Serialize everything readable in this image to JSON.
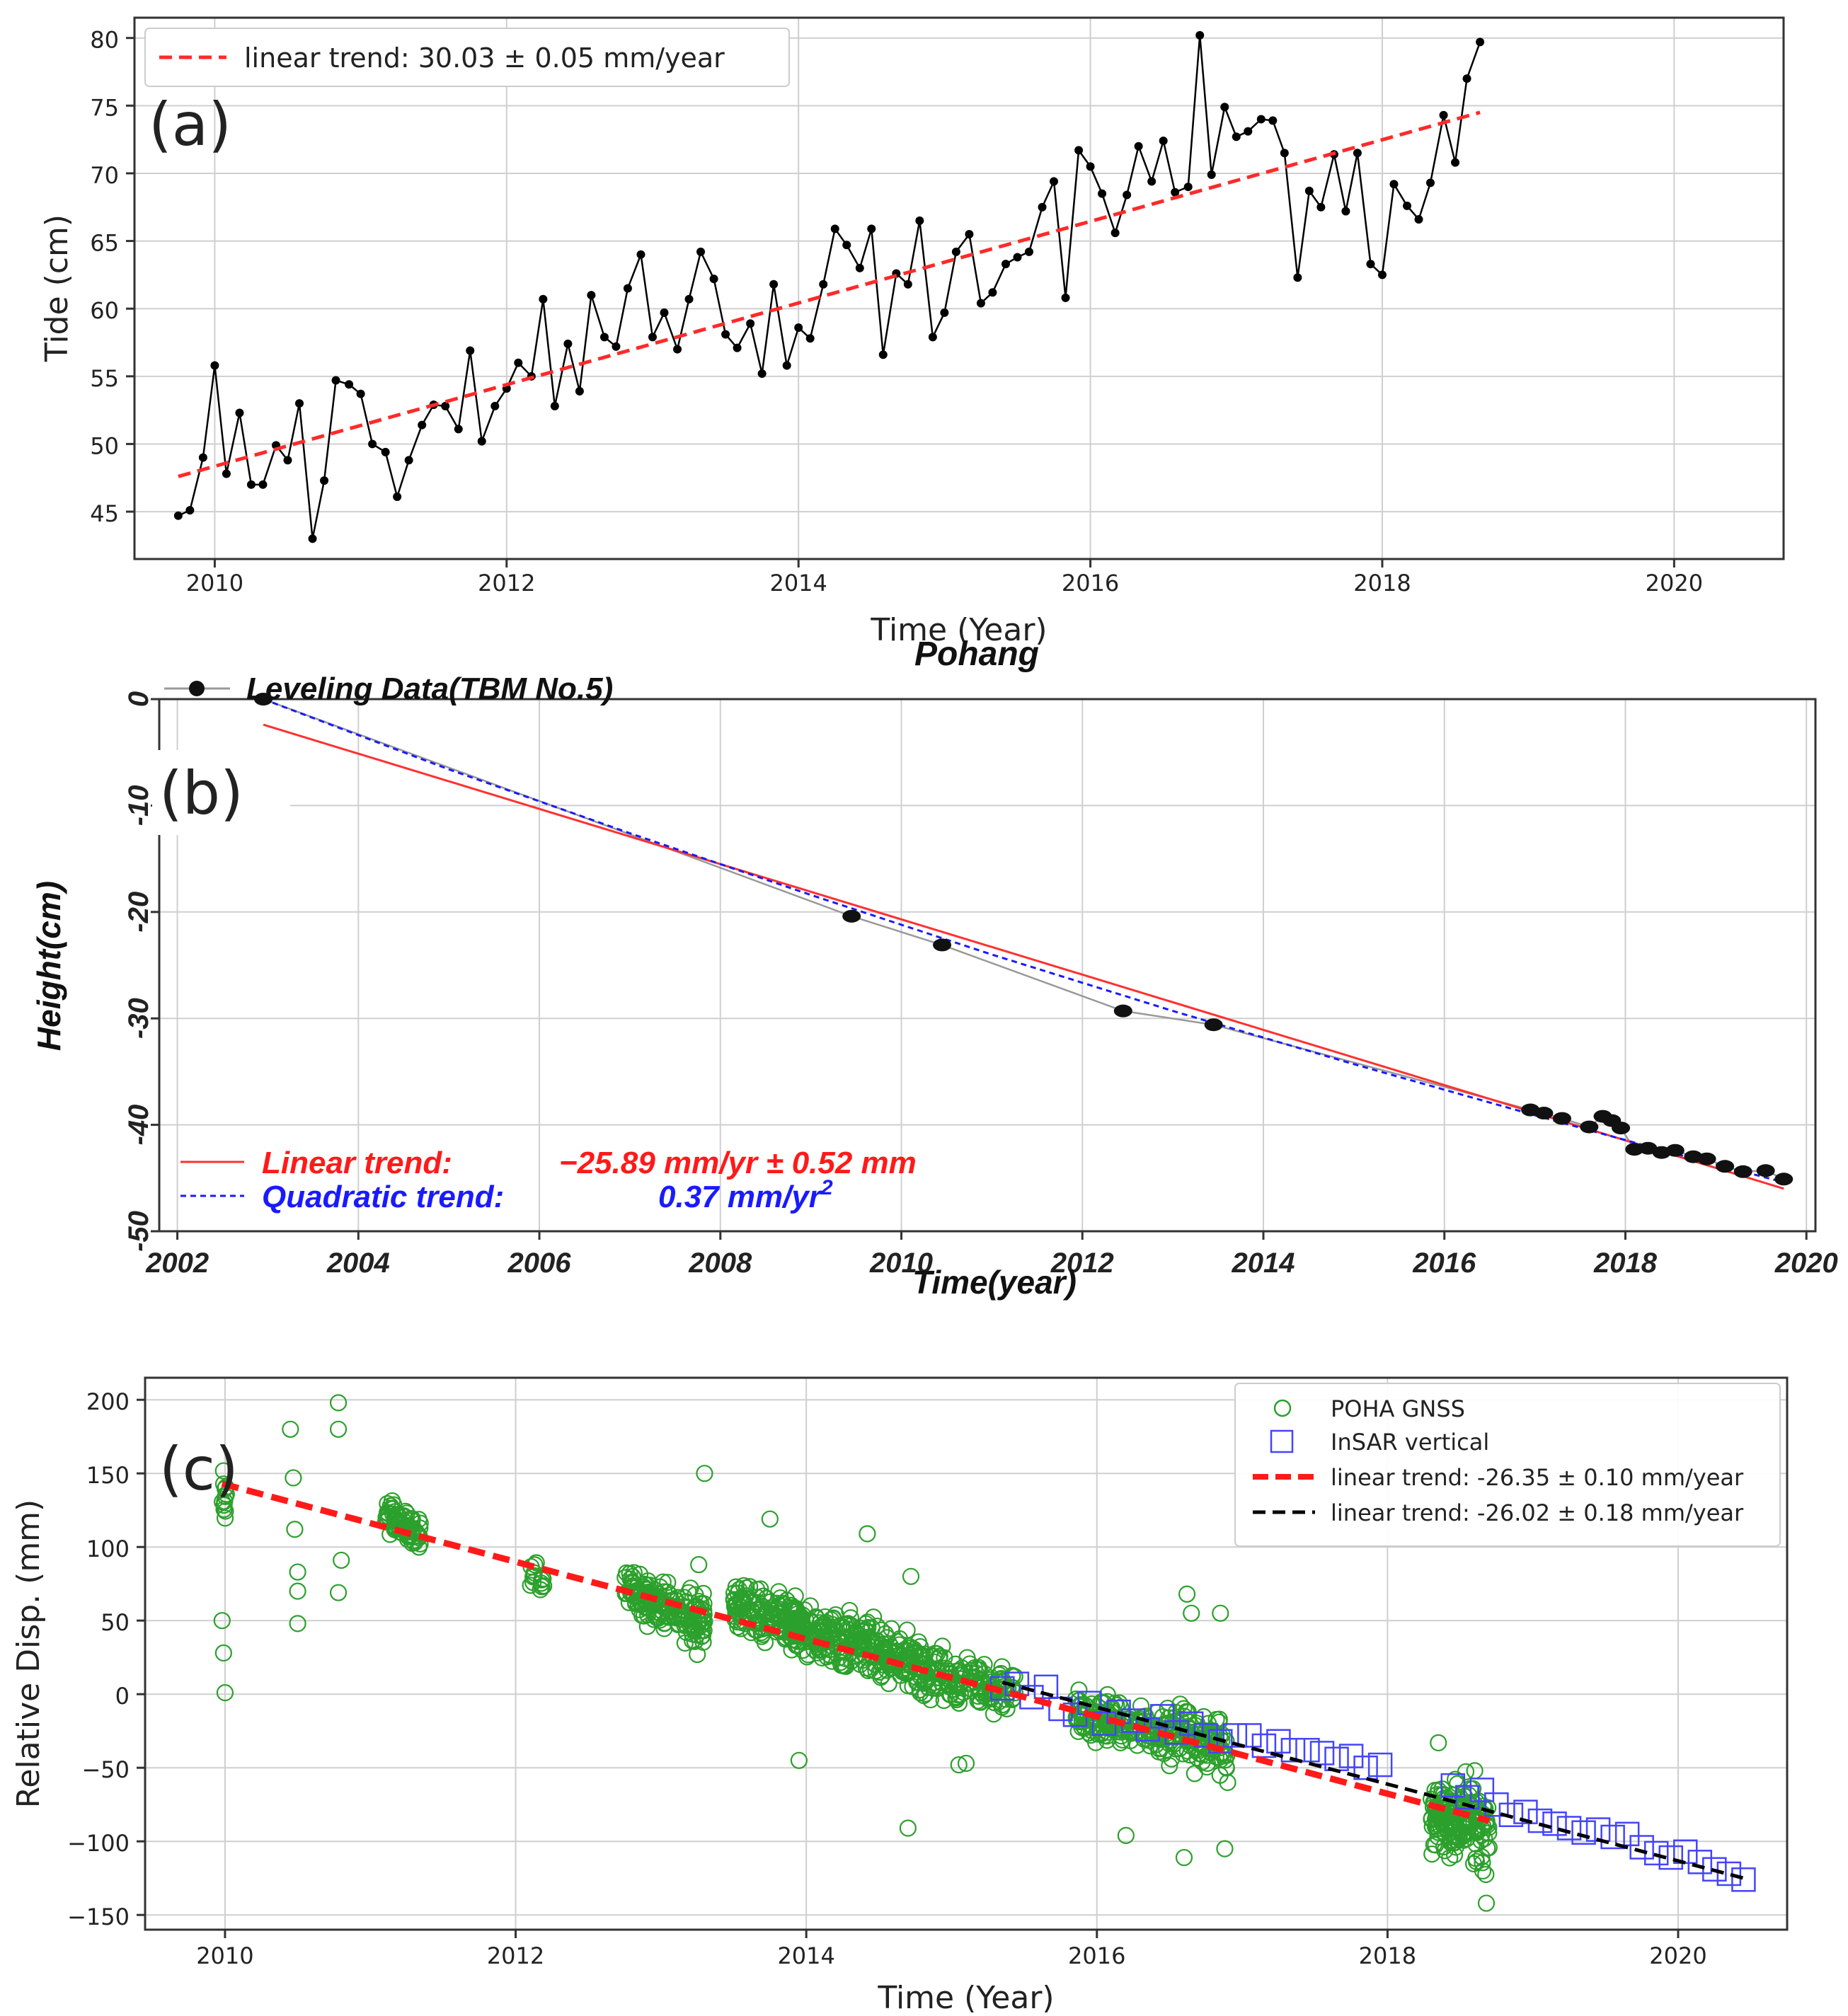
{
  "chart_data": [
    {
      "id": "a",
      "type": "line",
      "panel_label": "(a)",
      "title": "",
      "xlabel": "Time (Year)",
      "ylabel": "Tide (cm)",
      "xlim": [
        2009.45,
        2020.75
      ],
      "ylim": [
        41.5,
        81.5
      ],
      "xticks": [
        "2010",
        "2012",
        "2014",
        "2016",
        "2018",
        "2020"
      ],
      "yticks": [
        "45",
        "50",
        "55",
        "60",
        "65",
        "70",
        "75",
        "80"
      ],
      "grid": true,
      "legend_position": "top-left",
      "colors": {
        "data": "#000000",
        "trend": "#ff2a2a"
      },
      "series": [
        {
          "name": "Tide",
          "x": [
            2009.75,
            2009.83,
            2009.92,
            2010.0,
            2010.08,
            2010.17,
            2010.25,
            2010.33,
            2010.42,
            2010.5,
            2010.58,
            2010.67,
            2010.75,
            2010.83,
            2010.92,
            2011.0,
            2011.08,
            2011.17,
            2011.25,
            2011.33,
            2011.42,
            2011.5,
            2011.58,
            2011.67,
            2011.75,
            2011.83,
            2011.92,
            2012.0,
            2012.08,
            2012.17,
            2012.25,
            2012.33,
            2012.42,
            2012.5,
            2012.58,
            2012.67,
            2012.75,
            2012.83,
            2012.92,
            2013.0,
            2013.08,
            2013.17,
            2013.25,
            2013.33,
            2013.42,
            2013.5,
            2013.58,
            2013.67,
            2013.75,
            2013.83,
            2013.92,
            2014.0,
            2014.08,
            2014.17,
            2014.25,
            2014.33,
            2014.42,
            2014.5,
            2014.58,
            2014.67,
            2014.75,
            2014.83,
            2014.92,
            2015.0,
            2015.08,
            2015.17,
            2015.25,
            2015.33,
            2015.42,
            2015.5,
            2015.58,
            2015.67,
            2015.75,
            2015.83,
            2015.92,
            2016.0,
            2016.08,
            2016.17,
            2016.25,
            2016.33,
            2016.42,
            2016.5,
            2016.58,
            2016.67,
            2016.75,
            2016.83,
            2016.92,
            2017.0,
            2017.08,
            2017.17,
            2017.25,
            2017.33,
            2017.42,
            2017.5,
            2017.58,
            2017.67,
            2017.75,
            2017.83,
            2017.92,
            2018.0,
            2018.08,
            2018.17,
            2018.25,
            2018.33,
            2018.42,
            2018.5,
            2018.58,
            2018.67
          ],
          "values": [
            44.7,
            45.1,
            49.0,
            55.8,
            47.8,
            52.3,
            47.0,
            47.0,
            49.9,
            48.8,
            53.0,
            43.0,
            47.3,
            54.7,
            54.4,
            53.7,
            50.0,
            49.4,
            46.1,
            48.8,
            51.4,
            52.9,
            52.8,
            51.1,
            56.9,
            50.2,
            52.8,
            54.1,
            56.0,
            55.0,
            60.7,
            52.8,
            57.4,
            53.9,
            61.0,
            57.9,
            57.2,
            61.5,
            64.0,
            57.9,
            59.7,
            57.0,
            60.7,
            64.2,
            62.2,
            58.1,
            57.1,
            58.9,
            55.2,
            61.8,
            55.8,
            58.6,
            57.8,
            61.8,
            65.9,
            64.7,
            63.0,
            65.9,
            56.6,
            62.6,
            61.8,
            66.5,
            57.9,
            59.7,
            64.2,
            65.5,
            60.4,
            61.2,
            63.3,
            63.8,
            64.2,
            67.5,
            69.4,
            60.8,
            71.7,
            70.5,
            68.5,
            65.6,
            68.4,
            72.0,
            69.4,
            72.4,
            68.6,
            69.0,
            80.2,
            69.9,
            74.9,
            72.7,
            73.1,
            74.0,
            73.9,
            71.5,
            62.3,
            68.7,
            67.5,
            71.4,
            67.2,
            71.5,
            63.3,
            62.5,
            69.2,
            67.6,
            66.6,
            69.3,
            74.3,
            70.8,
            77.0,
            79.7
          ]
        },
        {
          "name": "linear trend: 30.03 ± 0.05 mm/year",
          "x": [
            2009.75,
            2018.67
          ],
          "values": [
            47.6,
            74.5
          ]
        }
      ]
    },
    {
      "id": "b",
      "type": "scatter",
      "panel_label": "(b)",
      "title": "Pohang",
      "xlabel": "Time(year)",
      "ylabel": "Height(cm)",
      "xlim": [
        2001.8,
        2020.1
      ],
      "ylim": [
        -50,
        0
      ],
      "xticks": [
        "2002",
        "2004",
        "2006",
        "2008",
        "2010",
        "2012",
        "2014",
        "2016",
        "2018",
        "2020"
      ],
      "yticks": [
        "0",
        "-10",
        "-20",
        "-30",
        "-40",
        "-50"
      ],
      "grid": true,
      "legend_position": "top-left",
      "colors": {
        "data": "#111111",
        "linear": "#ff3030",
        "quadratic": "#1a1aff"
      },
      "series": [
        {
          "name": "Leveling Data(TBM No.5)",
          "x": [
            2002.95,
            2009.45,
            2010.45,
            2012.45,
            2013.45,
            2016.95,
            2017.1,
            2017.3,
            2017.6,
            2017.75,
            2017.85,
            2017.95,
            2018.1,
            2018.25,
            2018.4,
            2018.55,
            2018.75,
            2018.9,
            2019.1,
            2019.3,
            2019.55,
            2019.75
          ],
          "values": [
            0.0,
            -20.4,
            -23.1,
            -29.3,
            -30.6,
            -38.6,
            -38.9,
            -39.4,
            -40.2,
            -39.2,
            -39.6,
            -40.3,
            -42.3,
            -42.2,
            -42.6,
            -42.4,
            -43.0,
            -43.2,
            -43.9,
            -44.4,
            -44.3,
            -45.1
          ]
        },
        {
          "name": "Linear trend:",
          "annotation": "−25.89 mm/yr ± 0.52 mm",
          "x": [
            2002.95,
            2019.75
          ],
          "values": [
            -2.4,
            -46.0
          ]
        },
        {
          "name": "Quadratic trend:",
          "annotation": "0.37 mm/yr",
          "annotation_superscript": "2",
          "x": [
            2002.95,
            2005.0,
            2007.0,
            2009.0,
            2011.0,
            2013.0,
            2015.0,
            2017.0,
            2018.5,
            2019.75
          ],
          "values": [
            0.0,
            -6.6,
            -12.6,
            -18.4,
            -24.0,
            -29.3,
            -34.3,
            -39.1,
            -42.6,
            -45.4
          ]
        }
      ]
    },
    {
      "id": "c",
      "type": "scatter",
      "panel_label": "(c)",
      "title": "",
      "xlabel": "Time (Year)",
      "ylabel": "Relative Disp. (mm)",
      "xlim": [
        2009.45,
        2020.75
      ],
      "ylim": [
        -160,
        215
      ],
      "xticks": [
        "2010",
        "2012",
        "2014",
        "2016",
        "2018",
        "2020"
      ],
      "yticks": [
        "200",
        "150",
        "100",
        "50",
        "0",
        "−50",
        "−100",
        "−150"
      ],
      "grid": true,
      "legend_position": "top-right",
      "colors": {
        "gnss": "#2ca02c",
        "insar": "#4444ff",
        "trend_gnss": "#ff1a1a",
        "trend_insar": "#000000"
      },
      "series": [
        {
          "name": "POHA GNSS",
          "clusters": [
            {
              "x_range": [
                2009.98,
                2010.03
              ],
              "center_start": 135,
              "center_end": 135,
              "spread": 12,
              "count": 12
            },
            {
              "x_range": [
                2011.1,
                2011.35
              ],
              "center_start": 122,
              "center_end": 108,
              "spread": 9,
              "count": 70
            },
            {
              "x_range": [
                2012.1,
                2012.2
              ],
              "center_start": 82,
              "center_end": 78,
              "spread": 8,
              "count": 14
            },
            {
              "x_range": [
                2012.75,
                2013.3
              ],
              "center_start": 74,
              "center_end": 48,
              "spread": 11,
              "count": 170
            },
            {
              "x_range": [
                2013.5,
                2014.8
              ],
              "center_start": 60,
              "center_end": 18,
              "spread": 13,
              "count": 420
            },
            {
              "x_range": [
                2014.8,
                2015.45
              ],
              "center_start": 15,
              "center_end": 0,
              "spread": 11,
              "count": 150
            },
            {
              "x_range": [
                2015.85,
                2016.45
              ],
              "center_start": -12,
              "center_end": -28,
              "spread": 10,
              "count": 150
            },
            {
              "x_range": [
                2016.45,
                2016.9
              ],
              "center_start": -22,
              "center_end": -38,
              "spread": 14,
              "count": 120
            },
            {
              "x_range": [
                2018.3,
                2018.7
              ],
              "center_start": -82,
              "center_end": -88,
              "spread": 18,
              "count": 170
            }
          ],
          "outliers_x": [
            2009.98,
            2009.99,
            2010.0,
            2010.45,
            2010.47,
            2010.48,
            2010.5,
            2010.5,
            2010.5,
            2010.78,
            2010.78,
            2010.8,
            2010.78,
            2013.3,
            2013.26,
            2013.25,
            2013.75,
            2014.42,
            2013.95,
            2014.72,
            2015.05,
            2015.1,
            2014.7,
            2016.2,
            2016.6,
            2016.62,
            2016.65,
            2016.85,
            2016.88,
            2016.9,
            2018.35,
            2018.68,
            2018.6
          ],
          "outliers_y": [
            50,
            28,
            1,
            180,
            147,
            112,
            83,
            70,
            48,
            198,
            180,
            91,
            69,
            150,
            88,
            27,
            119,
            109,
            -45,
            80,
            -48,
            -47,
            -91,
            -96,
            -111,
            68,
            55,
            55,
            -105,
            -60,
            -33,
            -142,
            -52
          ]
        },
        {
          "name": "InSAR vertical",
          "x": [
            2015.35,
            2015.45,
            2015.55,
            2015.65,
            2015.75,
            2015.85,
            2015.95,
            2016.05,
            2016.15,
            2016.25,
            2016.35,
            2016.45,
            2016.55,
            2016.65,
            2016.75,
            2016.85,
            2016.95,
            2017.05,
            2017.15,
            2017.25,
            2017.35,
            2017.45,
            2017.55,
            2017.65,
            2017.75,
            2017.85,
            2017.95,
            2018.45,
            2018.55,
            2018.65,
            2018.75,
            2018.85,
            2018.95,
            2019.05,
            2019.15,
            2019.25,
            2019.35,
            2019.45,
            2019.55,
            2019.65,
            2019.75,
            2019.85,
            2019.95,
            2020.05,
            2020.15,
            2020.25,
            2020.35,
            2020.45
          ],
          "values": [
            4,
            7,
            -2,
            5,
            -10,
            -14,
            -6,
            -20,
            -12,
            -18,
            -24,
            -15,
            -26,
            -20,
            -28,
            -32,
            -28,
            -28,
            -35,
            -32,
            -38,
            -38,
            -40,
            -44,
            -42,
            -50,
            -48,
            -62,
            -70,
            -65,
            -75,
            -82,
            -80,
            -86,
            -88,
            -91,
            -94,
            -92,
            -97,
            -95,
            -104,
            -108,
            -111,
            -107,
            -114,
            -119,
            -122,
            -126
          ]
        },
        {
          "name": "linear trend: -26.35 ± 0.10 mm/year",
          "x": [
            2009.98,
            2018.7
          ],
          "values": [
            143,
            -86
          ]
        },
        {
          "name": "linear trend: -26.02 ± 0.18 mm/year",
          "x": [
            2015.35,
            2020.45
          ],
          "values": [
            8,
            -125
          ]
        }
      ]
    }
  ]
}
